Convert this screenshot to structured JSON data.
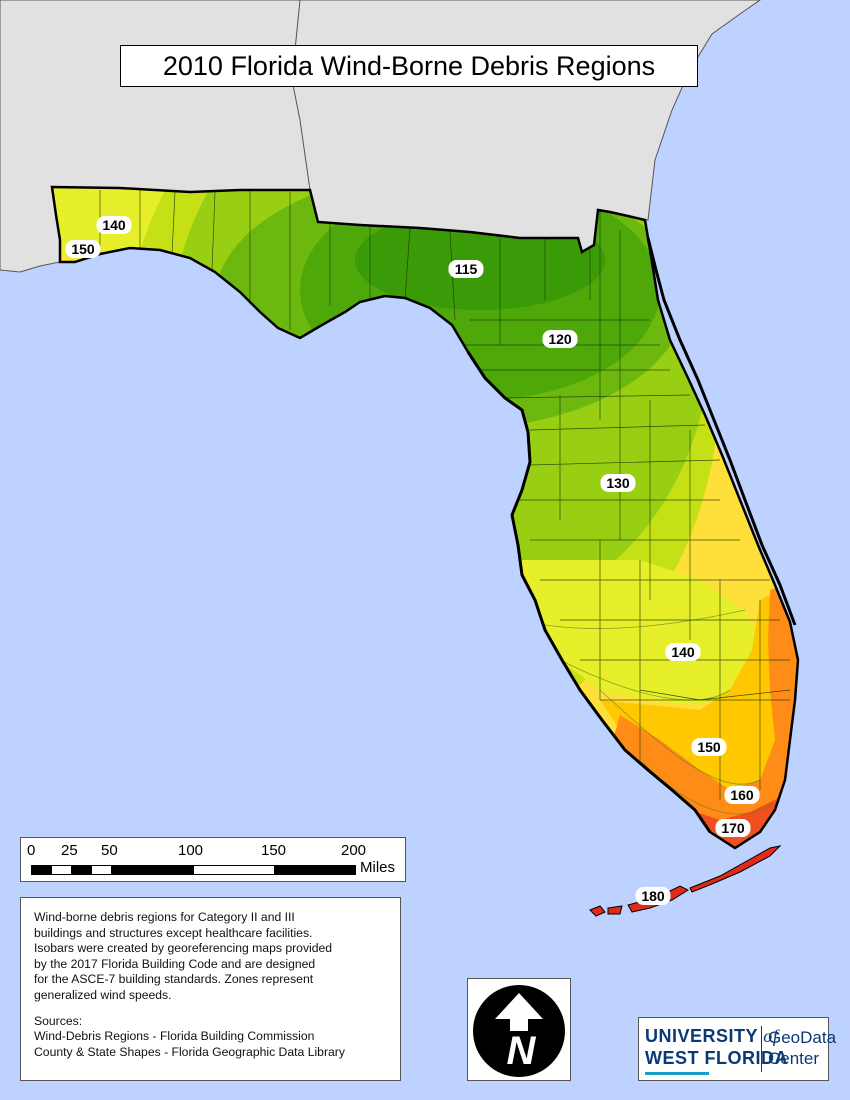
{
  "title": "2010 Florida Wind-Borne Debris Regions",
  "colors": {
    "ocean": "#bed2ff",
    "neighbor_states": "#e1e1e1",
    "zone_115": "#3a9a07",
    "zone_120": "#4ea80a",
    "zone_125": "#6cb80e",
    "zone_130": "#98cf12",
    "zone_135": "#c5e116",
    "zone_140": "#e6ef2a",
    "zone_145": "#ffe03a",
    "zone_150": "#ffc800",
    "zone_160": "#ff8c16",
    "zone_170": "#f05020",
    "zone_180": "#e02a1a",
    "coastline": "#000000"
  },
  "isobar_labels": [
    "115",
    "120",
    "130",
    "140",
    "150",
    "160",
    "170",
    "180",
    "140",
    "150"
  ],
  "scale_bar": {
    "ticks": [
      "0",
      "25",
      "50",
      "100",
      "150",
      "200"
    ],
    "unit": "Miles"
  },
  "notes": {
    "description": "Wind-borne debris regions for Category II and III\nbuildings and structures except healthcare facilities.\nIsobars were created by georeferencing maps provided\nby the 2017 Florida Building Code and are designed\nfor the ASCE-7 building standards. Zones represent\ngeneralized wind speeds.",
    "sources_title": "Sources:",
    "sources": [
      "Wind-Debris Regions - Florida Building Commission",
      "County & State Shapes - Florida Geographic Data Library"
    ]
  },
  "north_arrow": {
    "letter": "N",
    "icon": "north-arrow-icon"
  },
  "logo": {
    "university": "UNIVERSITY",
    "of": "of",
    "west_florida": "WEST FLORIDA",
    "geodata": "GeoData",
    "center": "Center"
  }
}
